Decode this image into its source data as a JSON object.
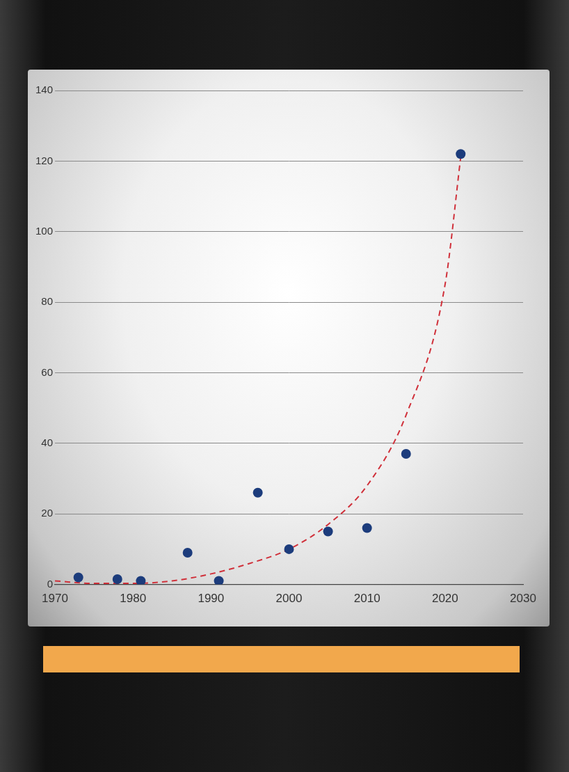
{
  "chart_data": {
    "type": "scatter",
    "series": [
      {
        "type": "scatter",
        "color": "#1c3c7c",
        "marker": "circle",
        "x": [
          1973,
          1978,
          1981,
          1987,
          1991,
          1996,
          2000,
          2005,
          2010,
          2015,
          2022
        ],
        "values": [
          2,
          1.5,
          1,
          9,
          1,
          26,
          10,
          15,
          16,
          37,
          122
        ]
      },
      {
        "type": "line",
        "color": "#d0303a",
        "line_style": "dashed",
        "x": [
          1970,
          1975,
          1980,
          1985,
          1990,
          1995,
          2000,
          2005,
          2010,
          2015,
          2020,
          2022
        ],
        "values": [
          1,
          0.3,
          0.3,
          1,
          3,
          6,
          10,
          17,
          28,
          48,
          85,
          121
        ]
      }
    ],
    "xlim": [
      1970,
      2030
    ],
    "xticks": [
      1970,
      1980,
      1990,
      2000,
      2010,
      2020,
      2030
    ],
    "ylim": [
      0,
      140
    ],
    "yticks": [
      0,
      20,
      40,
      60,
      80,
      100,
      120,
      140
    ],
    "grid": "y"
  }
}
